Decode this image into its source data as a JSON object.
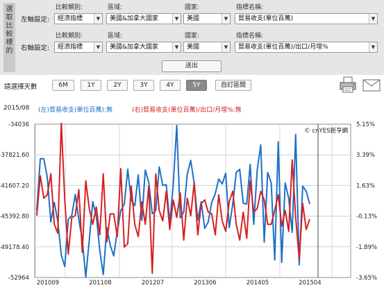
{
  "side_tab": "選取比較標的",
  "left_axis_row": {
    "row_label": "左軸設定:",
    "compare_type_label": "比較類別:",
    "compare_type_value": "經濟指標",
    "region_label": "區域:",
    "region_value": "美國&加拿大國家",
    "country_label": "國家:",
    "country_value": "美國",
    "indicator_label": "指標名稱:",
    "indicator_value": "貿易收支(單位百萬)"
  },
  "right_axis_row": {
    "row_label": "右軸設定:",
    "compare_type_label": "比較類別:",
    "compare_type_value": "經濟指標",
    "region_label": "區域:",
    "region_value": "美國&加拿大國家",
    "country_label": "國家:",
    "country_value": "美國",
    "indicator_label": "指標名稱:",
    "indicator_value": "貿易收支(單位百萬)/出口/月增%"
  },
  "submit_label": "送出",
  "days_label": "請選擇天數",
  "range_buttons": [
    "6M",
    "1Y",
    "2Y",
    "3Y",
    "4Y",
    "5Y",
    "自訂區間"
  ],
  "active_range": "5Y",
  "icons": {
    "print": "printer-icon",
    "mail": "mail-icon"
  },
  "date_label": "2015/08",
  "left_legend": "(左)貿易收支(單位百萬):無",
  "right_legend": "(右)貿易收支(單位百萬)/出口/月增%:無",
  "watermark": "© cnYES鉅亨網",
  "colors": {
    "left_series": "#1d6fc6",
    "right_series": "#d42020"
  },
  "chart_data": {
    "type": "line",
    "x_tick_labels": [
      "201009",
      "201108",
      "201207",
      "201306",
      "201405",
      "201504"
    ],
    "left_axis": {
      "ticks": [
        "-34036",
        "-37821.60",
        "-41607.20",
        "-45392.80",
        "-49178.40",
        "-52964"
      ],
      "ylim": [
        -52964,
        -34036
      ]
    },
    "right_axis": {
      "ticks": [
        "5.15%",
        "3.39%",
        "1.63%",
        "-0.13%",
        "-1.89%",
        "-3.65%"
      ],
      "ylim": [
        -3.65,
        5.15
      ]
    },
    "grid": true,
    "series": [
      {
        "axis": "left",
        "values": [
          -44700,
          -38300,
          -38300,
          -40600,
          -46100,
          -43700,
          -46000,
          -50200,
          -51600,
          -45800,
          -45300,
          -42700,
          -45800,
          -48300,
          -52900,
          -48300,
          -43600,
          -45400,
          -49600,
          -52600,
          -46800,
          -49000,
          -50300,
          -47200,
          -44700,
          -43900,
          -39600,
          -43400,
          -44100,
          -40300,
          -45900,
          -39700,
          -41200,
          -45100,
          -44700,
          -39300,
          -41600,
          -41500,
          -46200,
          -41500,
          -34200,
          -45600,
          -44900,
          -40200,
          -38500,
          -41400,
          -45900,
          -43600,
          -46900,
          -46100,
          -43700,
          -42600,
          -40800,
          -41400,
          -40100,
          -46800,
          -43900,
          -40000,
          -39600,
          -43800,
          -43900,
          -39000,
          -46400,
          -39700,
          -36600,
          -48600,
          -40000,
          -41300,
          -50800,
          -36200,
          -51100,
          -41300,
          -43200,
          -47400,
          -35300,
          -51400,
          -41700,
          -42300,
          -43900
        ]
      },
      {
        "axis": "right",
        "values": [
          -0.1,
          2.2,
          0.9,
          1.1,
          2.3,
          -0.6,
          -1.1,
          5.2,
          0.8,
          -2.3,
          -0.2,
          -0.1,
          1.4,
          -2.2,
          1.9,
          0.3,
          -0.6,
          0.4,
          -1.2,
          2.3,
          -1.6,
          0.0,
          0.0,
          -1.3,
          2.6,
          -1.9,
          -1.7,
          1.6,
          -0.6,
          -1.3,
          0.7,
          -0.6,
          1.6,
          -3.4,
          2.3,
          0.2,
          -0.4,
          1.3,
          -0.9,
          0.8,
          -0.2,
          1.2,
          -1.5,
          0.9,
          -0.1,
          1.8,
          -1.2,
          0.6,
          0.8,
          0.1,
          0.0,
          -1.2,
          1.1,
          -0.4,
          -1.0,
          0.7,
          1.3,
          -0.6,
          -1.5,
          0.1,
          -1.4,
          1.9,
          0.1,
          0.3,
          1.3,
          0.8,
          -0.6,
          -0.6,
          0.2,
          1.1,
          -0.7,
          0.2,
          -1.0,
          3.1,
          -0.2,
          -2.6,
          0.6,
          -0.9,
          -0.3
        ]
      }
    ]
  }
}
